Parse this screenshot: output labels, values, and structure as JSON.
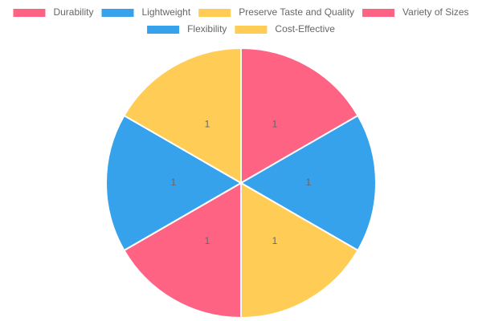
{
  "chart_data": {
    "type": "pie",
    "categories": [
      "Durability",
      "Lightweight",
      "Preserve Taste and Quality",
      "Variety of Sizes",
      "Flexibility",
      "Cost-Effective"
    ],
    "values": [
      1,
      1,
      1,
      1,
      1,
      1
    ],
    "colors": [
      "#ff6384",
      "#36a2eb",
      "#ffcd56",
      "#ff6384",
      "#36a2eb",
      "#ffcd56"
    ],
    "legend": "top"
  }
}
